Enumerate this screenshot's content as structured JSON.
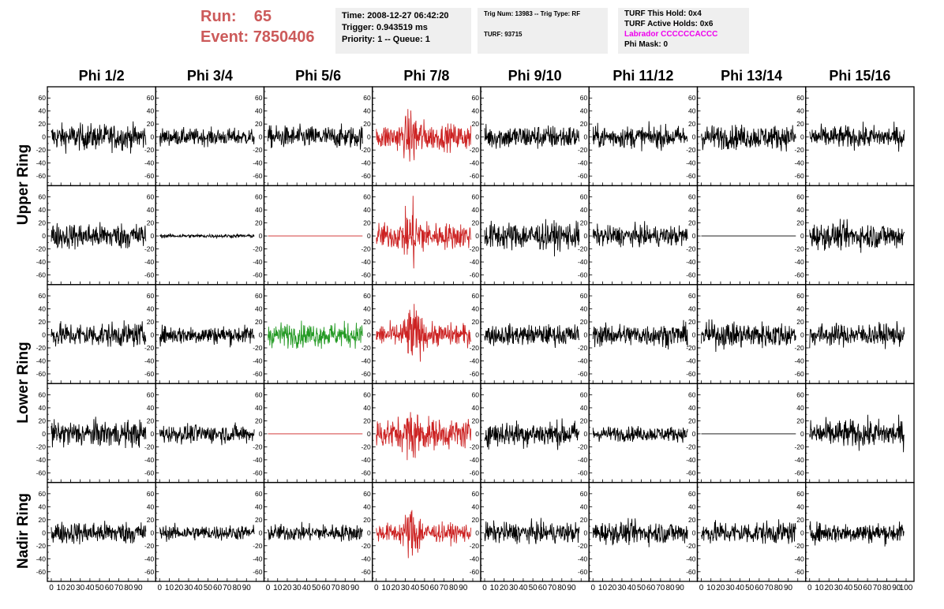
{
  "header": {
    "run_label": "Run:",
    "run_value": "65",
    "event_label": "Event:",
    "event_value": "7850406"
  },
  "info1": {
    "time": "Time: 2008-12-27 06:42:20",
    "trigger": "Trigger: 0.943519 ms",
    "priority": "Priority: 1 -- Queue: 1"
  },
  "info2": {
    "trig": "Trig Num: 13983 -- Trig Type: RF",
    "turf": "TURF: 93715"
  },
  "info3": {
    "hold": "TURF This Hold: 0x4",
    "active": "TURF Active Holds: 0x6",
    "labrador": "Labrador CCCCCCACCC",
    "phimask": "Phi Mask: 0"
  },
  "chart_data": {
    "type": "line",
    "columns": [
      "Phi 1/2",
      "Phi 3/4",
      "Phi 5/6",
      "Phi 7/8",
      "Phi 9/10",
      "Phi 11/12",
      "Phi 13/14",
      "Phi 15/16"
    ],
    "ring_labels": [
      {
        "label": "Upper Ring",
        "rows": [
          0,
          1
        ]
      },
      {
        "label": "Lower Ring",
        "rows": [
          2,
          3
        ]
      },
      {
        "label": "Nadir Ring",
        "rows": [
          4
        ]
      }
    ],
    "xlim": [
      0,
      100
    ],
    "ylim": [
      -70,
      70
    ],
    "x_ticks": [
      0,
      10,
      20,
      30,
      40,
      50,
      60,
      70,
      80,
      90,
      100
    ],
    "x_tick_labels": [
      "0",
      "10",
      "20",
      "30",
      "40",
      "50",
      "60",
      "70",
      "80",
      "90",
      "100"
    ],
    "x_tick_labels_short": [
      "0",
      "10",
      "20",
      "30",
      "40",
      "50",
      "60",
      "70",
      "80",
      "90"
    ],
    "y_ticks": [
      -60,
      -40,
      -20,
      0,
      20,
      40,
      60
    ],
    "y_tick_labels": [
      "-60",
      "-40",
      "-20",
      "0",
      "20",
      "40",
      "60"
    ],
    "colors": {
      "normal": "#000000",
      "triggered": "#cc2222",
      "l1": "#229922"
    },
    "panels": [
      [
        {
          "color": "normal",
          "amp": 14
        },
        {
          "color": "normal",
          "amp": 9
        },
        {
          "color": "normal",
          "amp": 12
        },
        {
          "color": "triggered",
          "amp": 14,
          "burst": 18
        },
        {
          "color": "normal",
          "amp": 13
        },
        {
          "color": "normal",
          "amp": 12
        },
        {
          "color": "normal",
          "amp": 13
        },
        {
          "color": "normal",
          "amp": 12
        }
      ],
      [
        {
          "color": "normal",
          "amp": 14
        },
        {
          "color": "normal",
          "amp": 2
        },
        {
          "color": "triggered",
          "amp": 0
        },
        {
          "color": "triggered",
          "amp": 14,
          "burst": 24
        },
        {
          "color": "normal",
          "amp": 15
        },
        {
          "color": "normal",
          "amp": 11
        },
        {
          "color": "normal",
          "amp": 0
        },
        {
          "color": "normal",
          "amp": 14
        }
      ],
      [
        {
          "color": "normal",
          "amp": 13
        },
        {
          "color": "normal",
          "amp": 10
        },
        {
          "color": "l1",
          "amp": 13
        },
        {
          "color": "triggered",
          "amp": 12,
          "burst": 22
        },
        {
          "color": "normal",
          "amp": 11
        },
        {
          "color": "normal",
          "amp": 12
        },
        {
          "color": "normal",
          "amp": 14
        },
        {
          "color": "normal",
          "amp": 12
        }
      ],
      [
        {
          "color": "normal",
          "amp": 14
        },
        {
          "color": "normal",
          "amp": 10
        },
        {
          "color": "triggered",
          "amp": 0
        },
        {
          "color": "triggered",
          "amp": 16,
          "burst": 14
        },
        {
          "color": "normal",
          "amp": 14
        },
        {
          "color": "normal",
          "amp": 8
        },
        {
          "color": "normal",
          "amp": 0
        },
        {
          "color": "normal",
          "amp": 15
        }
      ],
      [
        {
          "color": "normal",
          "amp": 12
        },
        {
          "color": "normal",
          "amp": 8
        },
        {
          "color": "normal",
          "amp": 9
        },
        {
          "color": "triggered",
          "amp": 10,
          "burst": 22
        },
        {
          "color": "normal",
          "amp": 11
        },
        {
          "color": "normal",
          "amp": 12
        },
        {
          "color": "normal",
          "amp": 12
        },
        {
          "color": "normal",
          "amp": 11
        }
      ]
    ]
  }
}
